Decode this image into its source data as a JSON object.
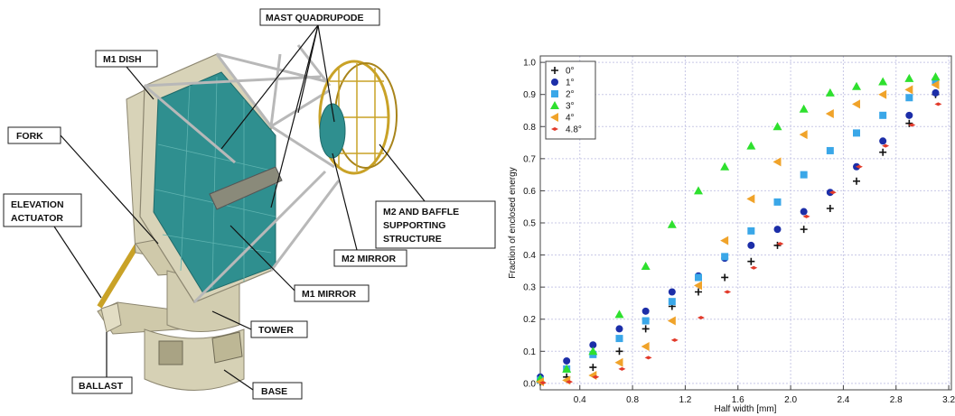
{
  "diagram": {
    "labels": {
      "mast_quadrupode": "MAST QUADRUPODE",
      "m1_dish": "M1 DISH",
      "fork": "FORK",
      "elevation_actuator_1": "ELEVATION",
      "elevation_actuator_2": "ACTUATOR",
      "m2_baffle_1": "M2 AND BAFFLE",
      "m2_baffle_2": "SUPPORTING",
      "m2_baffle_3": "STRUCTURE",
      "m2_mirror": "M2 MIRROR",
      "m1_mirror": "M1 MIRROR",
      "tower": "TOWER",
      "ballast": "BALLAST",
      "base": "BASE"
    },
    "colors": {
      "mirror": "#2f8f8f",
      "mirror_light": "#5fb3b0",
      "structure": "#d8d3b8",
      "structure_dark": "#b9b391",
      "frame": "#b8b8b8",
      "camera": "#c9a227"
    }
  },
  "chart_data": {
    "type": "scatter",
    "xlabel": "Half width [mm]",
    "ylabel": "Fraction of enclosed energy",
    "xlim": [
      0.1,
      3.22
    ],
    "ylim": [
      -0.02,
      1.02
    ],
    "xticks": [
      0.4,
      0.8,
      1.2,
      1.6,
      2.0,
      2.4,
      2.8,
      3.2
    ],
    "xtick_labels": [
      "0.4",
      "0.8",
      "1.2",
      "1.6",
      "2.0",
      "2.4",
      "2.8",
      "3.2"
    ],
    "yticks": [
      0.0,
      0.1,
      0.2,
      0.3,
      0.4,
      0.5,
      0.6,
      0.7,
      0.8,
      0.9,
      1.0
    ],
    "ytick_labels": [
      "0.0",
      "0.1",
      "0.2",
      "0.3",
      "0.4",
      "0.5",
      "0.6",
      "0.7",
      "0.8",
      "0.9",
      "1.0"
    ],
    "grid": true,
    "legend_position": "top-left",
    "series": [
      {
        "name": "0°",
        "marker": "plus",
        "color": "#111111",
        "x": [
          0.1,
          0.3,
          0.5,
          0.7,
          0.9,
          1.1,
          1.3,
          1.5,
          1.7,
          1.9,
          2.1,
          2.3,
          2.5,
          2.7,
          2.9,
          3.1
        ],
        "y": [
          0.005,
          0.02,
          0.05,
          0.1,
          0.17,
          0.24,
          0.285,
          0.33,
          0.38,
          0.43,
          0.48,
          0.545,
          0.63,
          0.72,
          0.81,
          0.9
        ]
      },
      {
        "name": "1°",
        "marker": "circle",
        "color": "#1c2ea8",
        "x": [
          0.1,
          0.3,
          0.5,
          0.7,
          0.9,
          1.1,
          1.3,
          1.5,
          1.7,
          1.9,
          2.1,
          2.3,
          2.5,
          2.7,
          2.9,
          3.1
        ],
        "y": [
          0.02,
          0.07,
          0.12,
          0.17,
          0.225,
          0.285,
          0.335,
          0.39,
          0.43,
          0.48,
          0.535,
          0.595,
          0.675,
          0.755,
          0.835,
          0.905
        ]
      },
      {
        "name": "2°",
        "marker": "square",
        "color": "#3aa7e8",
        "x": [
          0.1,
          0.3,
          0.5,
          0.7,
          0.9,
          1.1,
          1.3,
          1.5,
          1.7,
          1.9,
          2.1,
          2.3,
          2.5,
          2.7,
          2.9,
          3.1
        ],
        "y": [
          0.01,
          0.045,
          0.09,
          0.14,
          0.195,
          0.255,
          0.33,
          0.395,
          0.475,
          0.565,
          0.65,
          0.725,
          0.78,
          0.835,
          0.89,
          0.94
        ]
      },
      {
        "name": "3°",
        "marker": "triangle-up",
        "color": "#2ee02e",
        "x": [
          0.1,
          0.3,
          0.5,
          0.7,
          0.9,
          1.1,
          1.3,
          1.5,
          1.7,
          1.9,
          2.1,
          2.3,
          2.5,
          2.7,
          2.9,
          3.1
        ],
        "y": [
          0.015,
          0.045,
          0.1,
          0.215,
          0.365,
          0.495,
          0.6,
          0.675,
          0.74,
          0.8,
          0.855,
          0.905,
          0.925,
          0.94,
          0.95,
          0.955
        ]
      },
      {
        "name": "4°",
        "marker": "triangle-left",
        "color": "#f0a32a",
        "x": [
          0.1,
          0.3,
          0.5,
          0.7,
          0.9,
          1.1,
          1.3,
          1.5,
          1.7,
          1.9,
          2.1,
          2.3,
          2.5,
          2.7,
          2.9,
          3.1
        ],
        "y": [
          0.005,
          0.01,
          0.025,
          0.065,
          0.115,
          0.195,
          0.305,
          0.445,
          0.575,
          0.69,
          0.775,
          0.84,
          0.87,
          0.9,
          0.915,
          0.93
        ]
      },
      {
        "name": "4.8°",
        "marker": "diamond",
        "color": "#e23a2a",
        "x": [
          0.12,
          0.32,
          0.52,
          0.72,
          0.92,
          1.12,
          1.32,
          1.52,
          1.72,
          1.92,
          2.12,
          2.32,
          2.52,
          2.72,
          2.92,
          3.12
        ],
        "y": [
          0.002,
          0.005,
          0.02,
          0.045,
          0.08,
          0.135,
          0.205,
          0.285,
          0.36,
          0.435,
          0.52,
          0.595,
          0.675,
          0.74,
          0.805,
          0.87
        ]
      }
    ]
  }
}
